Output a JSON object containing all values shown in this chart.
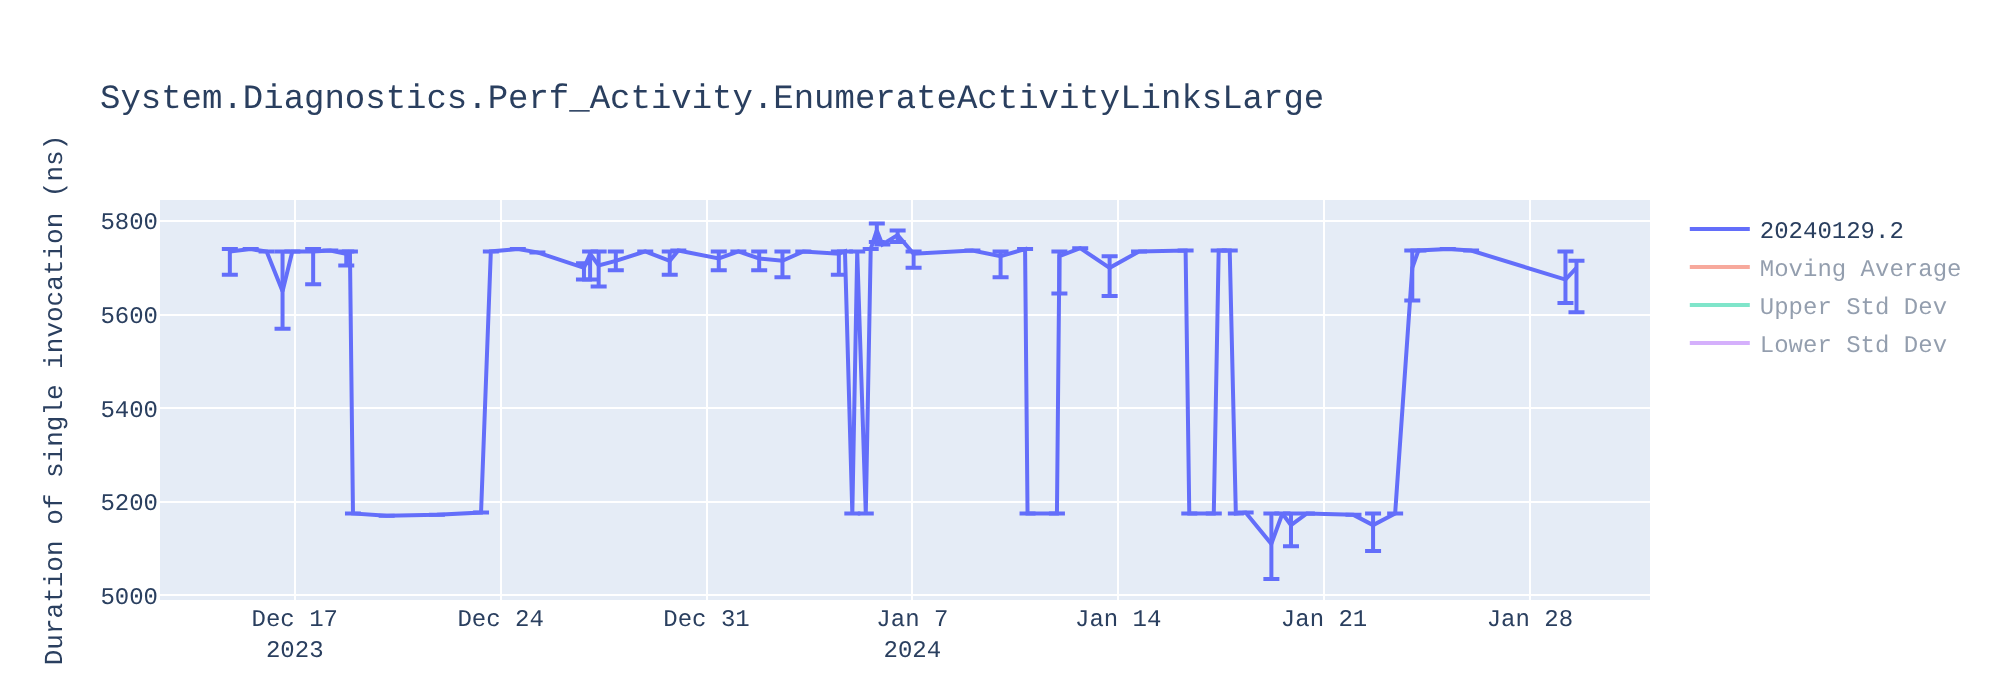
{
  "chart_data": {
    "type": "line",
    "title": "System.Diagnostics.Perf_Activity.EnumerateActivityLinksLarge",
    "ylabel": "Duration of single invocation (ns)",
    "x": [
      "2023-12-14T19:00",
      "2023-12-15T12:00",
      "2023-12-16T01:00",
      "2023-12-16T14:00",
      "2023-12-16T22:00",
      "2023-12-17T15:00",
      "2023-12-18T05:00",
      "2023-12-18T18:00",
      "2023-12-18T21:00",
      "2023-12-18T23:30",
      "2023-12-20T03:00",
      "2023-12-21T20:00",
      "2023-12-23T08:00",
      "2023-12-23T16:00",
      "2023-12-24T14:00",
      "2023-12-25T06:00",
      "2023-12-26T20:00",
      "2023-12-27T01:00",
      "2023-12-27T08:00",
      "2023-12-27T22:00",
      "2023-12-28T22:00",
      "2023-12-29T18:00",
      "2023-12-30T01:00",
      "2023-12-31T10:00",
      "2024-01-01T02:00",
      "2024-01-01T19:00",
      "2024-01-02T14:00",
      "2024-01-03T07:00",
      "2024-01-04T12:00",
      "2024-01-04T17:00",
      "2024-01-04T23:00",
      "2024-01-05T03:00",
      "2024-01-05T10:00",
      "2024-01-05T14:00",
      "2024-01-05T19:00",
      "2024-01-05T23:30",
      "2024-01-06T12:00",
      "2024-01-07T01:00",
      "2024-01-09T01:00",
      "2024-01-10T00:00",
      "2024-01-10T20:00",
      "2024-01-10T22:00",
      "2024-01-11T22:00",
      "2024-01-12T00:00",
      "2024-01-12T17:00",
      "2024-01-13T17:00",
      "2024-01-14T17:00",
      "2024-01-16T07:00",
      "2024-01-16T10:00",
      "2024-01-17T06:00",
      "2024-01-17T10:00",
      "2024-01-17T19:00",
      "2024-01-18T00:00",
      "2024-01-18T08:00",
      "2024-01-19T05:00",
      "2024-01-19T14:00",
      "2024-01-19T21:00",
      "2024-01-20T10:00",
      "2024-01-22T00:00",
      "2024-01-22T16:00",
      "2024-01-23T10:00",
      "2024-01-24T00:00",
      "2024-01-24T05:00",
      "2024-01-25T05:00",
      "2024-01-26T00:00",
      "2024-01-29T05:00",
      "2024-01-29T14:00"
    ],
    "series": [
      {
        "name": "20240129.2",
        "color": "#636efa",
        "values": [
          5735,
          5740,
          5735,
          5650,
          5735,
          5735,
          5737,
          5730,
          5735,
          5175,
          5170,
          5172,
          5177,
          5735,
          5740,
          5733,
          5700,
          5730,
          5705,
          5715,
          5735,
          5715,
          5737,
          5720,
          5735,
          5720,
          5715,
          5735,
          5730,
          5735,
          5175,
          5735,
          5175,
          5740,
          5780,
          5750,
          5770,
          5730,
          5737,
          5725,
          5740,
          5175,
          5175,
          5725,
          5742,
          5700,
          5735,
          5737,
          5175,
          5175,
          5737,
          5737,
          5175,
          5177,
          5110,
          5175,
          5150,
          5175,
          5172,
          5150,
          5175,
          5700,
          5737,
          5740,
          5737,
          5675,
          5700
        ],
        "errors": [
          [
            5685,
            5740
          ],
          null,
          null,
          [
            5570,
            5735
          ],
          null,
          [
            5665,
            5740
          ],
          null,
          [
            5705,
            5735
          ],
          null,
          null,
          null,
          null,
          null,
          null,
          null,
          null,
          [
            5675,
            5710
          ],
          [
            5675,
            5735
          ],
          [
            5660,
            5735
          ],
          [
            5695,
            5735
          ],
          null,
          [
            5685,
            5735
          ],
          null,
          [
            5695,
            5735
          ],
          null,
          [
            5695,
            5735
          ],
          [
            5680,
            5735
          ],
          null,
          [
            5685,
            5735
          ],
          null,
          null,
          null,
          null,
          null,
          [
            5755,
            5795
          ],
          null,
          [
            5755,
            5780
          ],
          [
            5700,
            5735
          ],
          null,
          [
            5680,
            5735
          ],
          null,
          null,
          null,
          [
            5645,
            5735
          ],
          null,
          [
            5640,
            5725
          ],
          null,
          null,
          null,
          null,
          null,
          null,
          null,
          null,
          [
            5035,
            5175
          ],
          null,
          [
            5105,
            5175
          ],
          null,
          null,
          [
            5095,
            5175
          ],
          null,
          [
            5630,
            5737
          ],
          null,
          null,
          null,
          [
            5625,
            5735
          ],
          [
            5605,
            5715
          ]
        ]
      },
      {
        "name": "Moving Average",
        "color": "#ef553b",
        "values": [
          null,
          null,
          null,
          null,
          null,
          null,
          null,
          null,
          null,
          null,
          null,
          null,
          null,
          null,
          null,
          null,
          null,
          null,
          null,
          null,
          null,
          null,
          null,
          null,
          null,
          null,
          null,
          null,
          null,
          null,
          null,
          null,
          null,
          null,
          null,
          null,
          null,
          null,
          null,
          null,
          null,
          null,
          null,
          null,
          null,
          null,
          null,
          null,
          null,
          null,
          null,
          null,
          null,
          null,
          null,
          null,
          null,
          null,
          null,
          null,
          null,
          null,
          null,
          null,
          null,
          null,
          null
        ]
      },
      {
        "name": "Upper Std Dev",
        "color": "#00cc96",
        "values": [
          null,
          null,
          null,
          null,
          null,
          null,
          null,
          null,
          null,
          null,
          null,
          null,
          null,
          null,
          null,
          null,
          null,
          null,
          null,
          null,
          null,
          null,
          null,
          null,
          null,
          null,
          null,
          null,
          null,
          null,
          null,
          null,
          null,
          null,
          null,
          null,
          null,
          null,
          null,
          null,
          null,
          null,
          null,
          null,
          null,
          null,
          null,
          null,
          null,
          null,
          null,
          null,
          null,
          null,
          null,
          null,
          null,
          null,
          null,
          null,
          null,
          null,
          null,
          null,
          null,
          null,
          null
        ]
      },
      {
        "name": "Lower Std Dev",
        "color": "#ab63fa",
        "values": [
          null,
          null,
          null,
          null,
          null,
          null,
          null,
          null,
          null,
          null,
          null,
          null,
          null,
          null,
          null,
          null,
          null,
          null,
          null,
          null,
          null,
          null,
          null,
          null,
          null,
          null,
          null,
          null,
          null,
          null,
          null,
          null,
          null,
          null,
          null,
          null,
          null,
          null,
          null,
          null,
          null,
          null,
          null,
          null,
          null,
          null,
          null,
          null,
          null,
          null,
          null,
          null,
          null,
          null,
          null,
          null,
          null,
          null,
          null,
          null,
          null,
          null,
          null,
          null,
          null,
          null,
          null
        ]
      }
    ],
    "xlim": [
      "2023-12-12T10:00",
      "2024-02-01T02:00"
    ],
    "xticks": [
      {
        "value": "2023-12-17",
        "label": "Dec 17\n2023"
      },
      {
        "value": "2023-12-24",
        "label": "Dec 24"
      },
      {
        "value": "2023-12-31",
        "label": "Dec 31"
      },
      {
        "value": "2024-01-07",
        "label": "Jan 7\n2024"
      },
      {
        "value": "2024-01-14",
        "label": "Jan 14"
      },
      {
        "value": "2024-01-21",
        "label": "Jan 21"
      },
      {
        "value": "2024-01-28",
        "label": "Jan 28"
      }
    ],
    "ylim": [
      4990,
      5845
    ],
    "yticks": [
      5000,
      5200,
      5400,
      5600,
      5800
    ],
    "grid": true,
    "legend": "top right",
    "marker": "none",
    "line_style": "solid"
  }
}
